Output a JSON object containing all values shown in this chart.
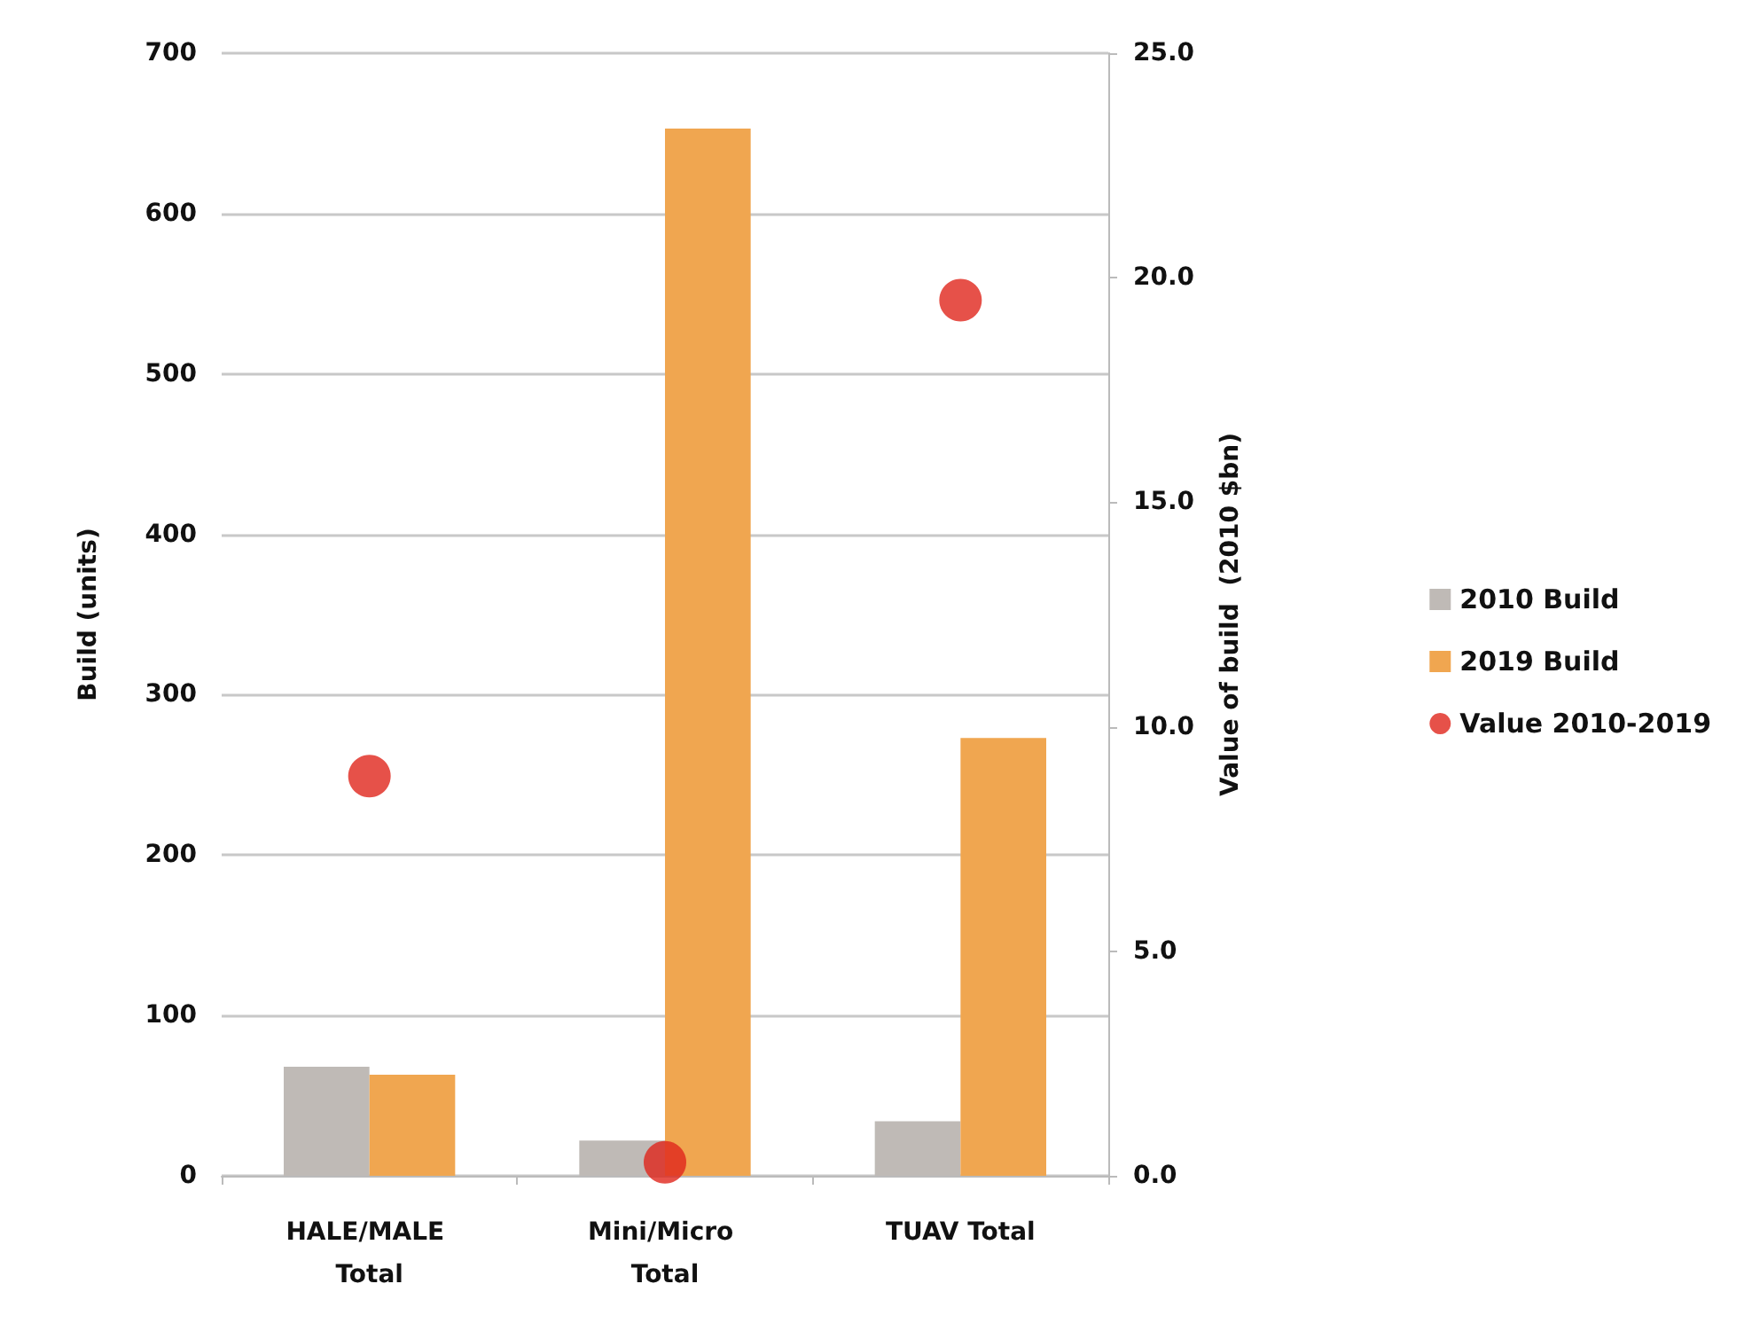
{
  "chart_data": {
    "type": "bar",
    "categories": [
      "HALE/MALE Total",
      "Mini/Micro Total",
      "TUAV Total"
    ],
    "ylabel": "Build (units)",
    "y2label": "Value of build  (2010 $bn)",
    "ylim": [
      0,
      700
    ],
    "yticks": [
      0,
      100,
      200,
      300,
      400,
      500,
      600,
      700
    ],
    "y2lim": [
      0,
      25
    ],
    "y2ticks": [
      {
        "value": 0,
        "label": "0.0"
      },
      {
        "value": 5,
        "label": "5.0"
      },
      {
        "value": 10,
        "label": "10.0"
      },
      {
        "value": 15,
        "label": "15.0"
      },
      {
        "value": 20,
        "label": "20.0"
      },
      {
        "value": 25,
        "label": "25.0"
      }
    ],
    "grid": "y",
    "legend": "right",
    "series": [
      {
        "name": "2010 Build",
        "color": "#bfbab6",
        "values": [
          68,
          22,
          34
        ]
      },
      {
        "name": "2019 Build",
        "color": "#f0a650",
        "values": [
          63,
          653,
          273
        ]
      },
      {
        "name": "Value 2010-2019",
        "type": "scatter",
        "axis": "y2",
        "marker": "circle",
        "color": "#e0251c",
        "x": [
          "HALE/MALE Total",
          "Mini/Micro Total",
          "TUAV Total"
        ],
        "values": [
          8.9,
          0.3,
          19.5
        ]
      }
    ]
  }
}
